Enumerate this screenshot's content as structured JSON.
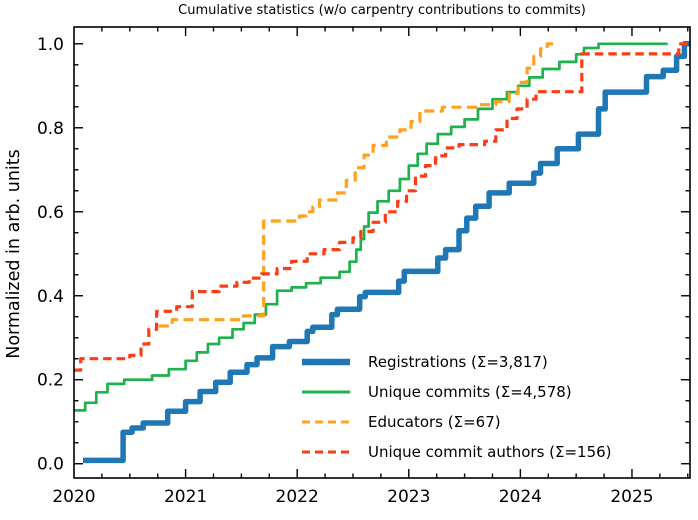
{
  "figure": {
    "title": "Cumulative statistics (w/o carpentry contributions to commits)"
  },
  "chart_data": {
    "type": "line",
    "subtype": "cumulative-step",
    "title": "Cumulative statistics (w/o carpentry contributions to commits)",
    "xlabel": "",
    "ylabel": "Normalized in arb. units",
    "xlim": [
      2020,
      2025.52
    ],
    "ylim": [
      -0.034,
      1.04
    ],
    "grid": false,
    "legend_position": "lower right",
    "x_ticks": {
      "major": [
        2020,
        2021,
        2022,
        2023,
        2024,
        2025
      ],
      "labels": [
        "2020",
        "2021",
        "2022",
        "2023",
        "2024",
        "2025"
      ],
      "minor_step": 0.25
    },
    "y_ticks": {
      "major": [
        0.0,
        0.2,
        0.4,
        0.6,
        0.8,
        1.0
      ],
      "labels": [
        "0.0",
        "0.2",
        "0.4",
        "0.6",
        "0.8",
        "1.0"
      ],
      "minor_step": 0.05
    },
    "series": [
      {
        "name": "registrations",
        "label": "Registrations  (Σ=3,817)",
        "total": "3,817",
        "color": "#1f77b4",
        "line_width": 5.5,
        "dash": "",
        "step": true,
        "points": [
          [
            2020.08,
            0.008
          ],
          [
            2020.44,
            0.075
          ],
          [
            2020.52,
            0.085
          ],
          [
            2020.62,
            0.097
          ],
          [
            2020.84,
            0.125
          ],
          [
            2021.0,
            0.148
          ],
          [
            2021.13,
            0.172
          ],
          [
            2021.27,
            0.194
          ],
          [
            2021.4,
            0.218
          ],
          [
            2021.55,
            0.236
          ],
          [
            2021.64,
            0.252
          ],
          [
            2021.78,
            0.279
          ],
          [
            2021.93,
            0.291
          ],
          [
            2022.09,
            0.315
          ],
          [
            2022.14,
            0.325
          ],
          [
            2022.31,
            0.355
          ],
          [
            2022.36,
            0.368
          ],
          [
            2022.56,
            0.398
          ],
          [
            2022.61,
            0.408
          ],
          [
            2022.91,
            0.435
          ],
          [
            2022.96,
            0.458
          ],
          [
            2023.26,
            0.49
          ],
          [
            2023.33,
            0.51
          ],
          [
            2023.45,
            0.555
          ],
          [
            2023.52,
            0.585
          ],
          [
            2023.6,
            0.613
          ],
          [
            2023.72,
            0.645
          ],
          [
            2023.9,
            0.668
          ],
          [
            2024.12,
            0.692
          ],
          [
            2024.18,
            0.715
          ],
          [
            2024.33,
            0.75
          ],
          [
            2024.52,
            0.785
          ],
          [
            2024.7,
            0.845
          ],
          [
            2024.76,
            0.885
          ],
          [
            2025.13,
            0.922
          ],
          [
            2025.28,
            0.937
          ],
          [
            2025.4,
            0.97
          ],
          [
            2025.47,
            1.0
          ],
          [
            2025.52,
            1.0
          ]
        ]
      },
      {
        "name": "unique-commits",
        "label": "Unique commits (Σ=4,578)",
        "total": "4,578",
        "color": "#1eb14c",
        "line_width": 2.7,
        "dash": "",
        "step": true,
        "points": [
          [
            2020.0,
            0.127
          ],
          [
            2020.1,
            0.145
          ],
          [
            2020.2,
            0.17
          ],
          [
            2020.3,
            0.19
          ],
          [
            2020.45,
            0.2
          ],
          [
            2020.7,
            0.21
          ],
          [
            2020.85,
            0.225
          ],
          [
            2021.0,
            0.245
          ],
          [
            2021.1,
            0.265
          ],
          [
            2021.2,
            0.285
          ],
          [
            2021.3,
            0.3
          ],
          [
            2021.42,
            0.32
          ],
          [
            2021.52,
            0.335
          ],
          [
            2021.62,
            0.355
          ],
          [
            2021.72,
            0.38
          ],
          [
            2021.82,
            0.412
          ],
          [
            2021.95,
            0.42
          ],
          [
            2022.08,
            0.43
          ],
          [
            2022.21,
            0.443
          ],
          [
            2022.38,
            0.457
          ],
          [
            2022.47,
            0.481
          ],
          [
            2022.53,
            0.51
          ],
          [
            2022.57,
            0.535
          ],
          [
            2022.6,
            0.565
          ],
          [
            2022.64,
            0.598
          ],
          [
            2022.72,
            0.625
          ],
          [
            2022.82,
            0.65
          ],
          [
            2022.92,
            0.678
          ],
          [
            2023.0,
            0.71
          ],
          [
            2023.08,
            0.738
          ],
          [
            2023.16,
            0.762
          ],
          [
            2023.26,
            0.785
          ],
          [
            2023.38,
            0.802
          ],
          [
            2023.5,
            0.82
          ],
          [
            2023.62,
            0.845
          ],
          [
            2023.75,
            0.868
          ],
          [
            2023.88,
            0.885
          ],
          [
            2023.98,
            0.9
          ],
          [
            2024.08,
            0.92
          ],
          [
            2024.2,
            0.94
          ],
          [
            2024.35,
            0.957
          ],
          [
            2024.5,
            0.975
          ],
          [
            2024.57,
            0.99
          ],
          [
            2024.7,
            1.0
          ],
          [
            2025.32,
            1.0
          ]
        ]
      },
      {
        "name": "educators",
        "label": "Educators (Σ=67)",
        "total": "67",
        "color": "#ffa11e",
        "line_width": 3.2,
        "dash": "10 5.5",
        "step": true,
        "points": [
          [
            2020.76,
            0.328
          ],
          [
            2020.88,
            0.343
          ],
          [
            2021.52,
            0.352
          ],
          [
            2021.7,
            0.578
          ],
          [
            2022.02,
            0.59
          ],
          [
            2022.08,
            0.6
          ],
          [
            2022.14,
            0.612
          ],
          [
            2022.2,
            0.628
          ],
          [
            2022.36,
            0.645
          ],
          [
            2022.44,
            0.675
          ],
          [
            2022.52,
            0.705
          ],
          [
            2022.6,
            0.735
          ],
          [
            2022.68,
            0.758
          ],
          [
            2022.8,
            0.778
          ],
          [
            2022.92,
            0.795
          ],
          [
            2023.02,
            0.815
          ],
          [
            2023.1,
            0.84
          ],
          [
            2023.3,
            0.849
          ],
          [
            2023.6,
            0.855
          ],
          [
            2023.78,
            0.862
          ],
          [
            2023.9,
            0.882
          ],
          [
            2023.98,
            0.908
          ],
          [
            2024.06,
            0.942
          ],
          [
            2024.12,
            0.97
          ],
          [
            2024.18,
            0.988
          ],
          [
            2024.24,
            1.0
          ],
          [
            2024.32,
            1.0
          ]
        ]
      },
      {
        "name": "unique-commit-authors",
        "label": "Unique commit authors (Σ=156)",
        "total": "156",
        "color": "#fb3d16",
        "line_width": 3.2,
        "dash": "8.5 5",
        "step": true,
        "points": [
          [
            2020.0,
            0.223
          ],
          [
            2020.06,
            0.25
          ],
          [
            2020.5,
            0.258
          ],
          [
            2020.6,
            0.285
          ],
          [
            2020.67,
            0.32
          ],
          [
            2020.74,
            0.363
          ],
          [
            2020.92,
            0.374
          ],
          [
            2021.06,
            0.41
          ],
          [
            2021.3,
            0.423
          ],
          [
            2021.46,
            0.432
          ],
          [
            2021.57,
            0.442
          ],
          [
            2021.68,
            0.452
          ],
          [
            2021.82,
            0.465
          ],
          [
            2021.95,
            0.482
          ],
          [
            2022.09,
            0.5
          ],
          [
            2022.24,
            0.51
          ],
          [
            2022.38,
            0.527
          ],
          [
            2022.5,
            0.538
          ],
          [
            2022.57,
            0.553
          ],
          [
            2022.68,
            0.575
          ],
          [
            2022.79,
            0.6
          ],
          [
            2022.9,
            0.625
          ],
          [
            2022.98,
            0.65
          ],
          [
            2023.06,
            0.685
          ],
          [
            2023.15,
            0.71
          ],
          [
            2023.24,
            0.733
          ],
          [
            2023.33,
            0.752
          ],
          [
            2023.45,
            0.76
          ],
          [
            2023.68,
            0.768
          ],
          [
            2023.78,
            0.795
          ],
          [
            2023.88,
            0.822
          ],
          [
            2023.97,
            0.845
          ],
          [
            2024.06,
            0.868
          ],
          [
            2024.14,
            0.886
          ],
          [
            2024.55,
            0.976
          ],
          [
            2025.42,
            1.0
          ],
          [
            2025.52,
            1.0
          ]
        ]
      }
    ]
  }
}
